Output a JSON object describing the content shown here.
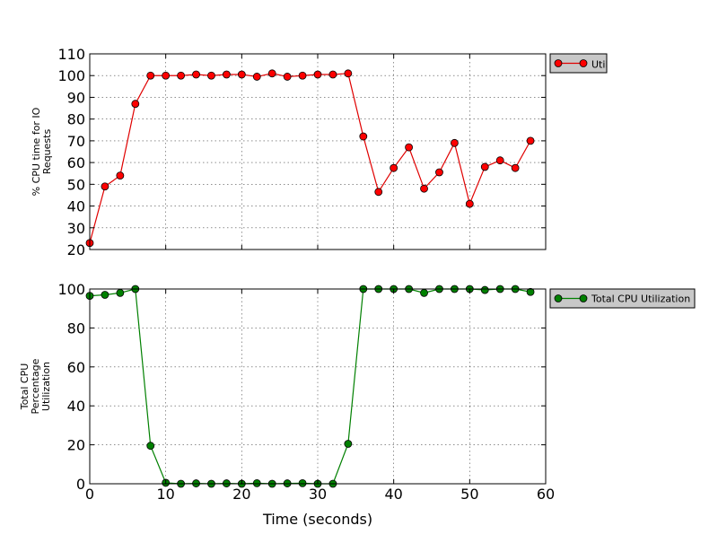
{
  "chart_data": [
    {
      "type": "line",
      "ylabel_lines": [
        "% CPU time for IO",
        "Requests"
      ],
      "xlabel": "",
      "xlim": [
        0,
        60
      ],
      "ylim": [
        20,
        110
      ],
      "x_ticks": [
        0,
        10,
        20,
        30,
        40,
        50,
        60
      ],
      "y_ticks": [
        20,
        30,
        40,
        50,
        60,
        70,
        80,
        90,
        100,
        110
      ],
      "x_tick_labels_visible": false,
      "grid": true,
      "legend_position": "outside-top-right",
      "series": [
        {
          "name": "Util",
          "color": "#ff0000",
          "line_color": "#e00000",
          "x": [
            0,
            2,
            4,
            6,
            8,
            10,
            12,
            14,
            16,
            18,
            20,
            22,
            24,
            26,
            28,
            30,
            32,
            34,
            36,
            38,
            40,
            42,
            44,
            46,
            48,
            50,
            52,
            54,
            56,
            58
          ],
          "values": [
            23,
            49,
            54,
            87,
            100,
            100,
            100,
            100.5,
            100,
            100.5,
            100.5,
            99.5,
            101,
            99.5,
            100,
            100.5,
            100.5,
            101,
            72,
            46.5,
            57.5,
            67,
            48,
            55.5,
            69,
            41,
            58,
            61,
            57.5,
            70
          ]
        }
      ]
    },
    {
      "type": "line",
      "ylabel_lines": [
        "Total CPU",
        "Percentage",
        "Utilization"
      ],
      "xlabel": "Time (seconds)",
      "xlim": [
        0,
        60
      ],
      "ylim": [
        0,
        100
      ],
      "x_ticks": [
        0,
        10,
        20,
        30,
        40,
        50,
        60
      ],
      "y_ticks": [
        0,
        20,
        40,
        60,
        80,
        100
      ],
      "x_tick_labels_visible": true,
      "grid": true,
      "legend_position": "outside-top-right",
      "series": [
        {
          "name": "Total CPU Utilization",
          "color": "#008000",
          "line_color": "#008000",
          "x": [
            0,
            2,
            4,
            6,
            8,
            10,
            12,
            14,
            16,
            18,
            20,
            22,
            24,
            26,
            28,
            30,
            32,
            34,
            36,
            38,
            40,
            42,
            44,
            46,
            48,
            50,
            52,
            54,
            56,
            58
          ],
          "values": [
            96.5,
            97,
            98,
            100,
            19.5,
            0.5,
            0,
            0.2,
            0,
            0.2,
            0,
            0.3,
            0,
            0.2,
            0.3,
            0,
            0,
            20.5,
            100,
            100,
            100,
            100,
            98,
            100,
            100,
            100,
            99.5,
            100,
            100,
            98.5
          ]
        }
      ]
    }
  ]
}
